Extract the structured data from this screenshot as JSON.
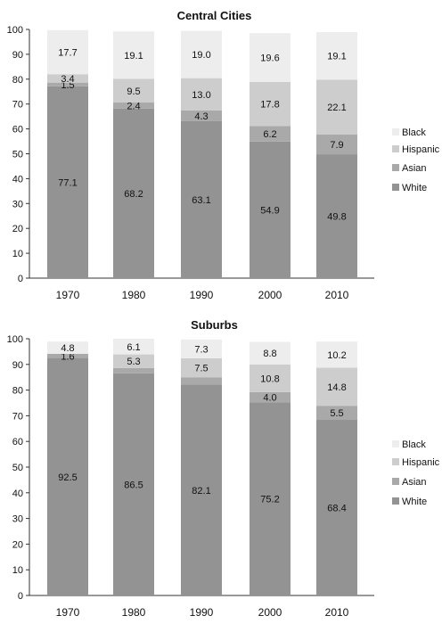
{
  "colors": {
    "White": "#939393",
    "Asian": "#a9a9a9",
    "Hispanic": "#cdcdcd",
    "Black": "#ededed",
    "axis": "#333333"
  },
  "chart_data": [
    {
      "type": "bar",
      "stacked": true,
      "title": "Central Cities",
      "categories": [
        "1970",
        "1980",
        "1990",
        "2000",
        "2010"
      ],
      "ylim": [
        0,
        100
      ],
      "yticks": [
        0,
        10,
        20,
        30,
        40,
        50,
        60,
        70,
        80,
        90,
        100
      ],
      "legend_position": "right",
      "series": [
        {
          "name": "White",
          "values": [
            77.1,
            68.2,
            63.1,
            54.9,
            49.8
          ],
          "labels": [
            "77.1",
            "68.2",
            "63.1",
            "54.9",
            "49.8"
          ]
        },
        {
          "name": "Asian",
          "values": [
            1.5,
            2.4,
            4.3,
            6.2,
            7.9
          ],
          "labels": [
            "1.5",
            "2.4",
            "4.3",
            "6.2",
            "7.9"
          ]
        },
        {
          "name": "Hispanic",
          "values": [
            3.4,
            9.5,
            13.0,
            17.8,
            22.1
          ],
          "labels": [
            "3.4",
            "9.5",
            "13.0",
            "17.8",
            "22.1"
          ]
        },
        {
          "name": "Black",
          "values": [
            17.7,
            19.1,
            19.0,
            19.6,
            19.1
          ],
          "labels": [
            "17.7",
            "19.1",
            "19.0",
            "19.6",
            "19.1"
          ]
        }
      ],
      "legend": [
        "Black",
        "Hispanic",
        "Asian",
        "White"
      ]
    },
    {
      "type": "bar",
      "stacked": true,
      "title": "Suburbs",
      "categories": [
        "1970",
        "1980",
        "1990",
        "2000",
        "2010"
      ],
      "ylim": [
        0,
        100
      ],
      "yticks": [
        0,
        10,
        20,
        30,
        40,
        50,
        60,
        70,
        80,
        90,
        100
      ],
      "legend_position": "right",
      "series": [
        {
          "name": "White",
          "values": [
            92.5,
            86.5,
            82.1,
            75.2,
            68.4
          ],
          "labels": [
            "92.5",
            "86.5",
            "82.1",
            "75.2",
            "68.4"
          ]
        },
        {
          "name": "Asian",
          "values": [
            1.6,
            2.1,
            2.8,
            4.0,
            5.5
          ],
          "labels": [
            "1.6",
            "",
            "",
            "4.0",
            "5.5"
          ]
        },
        {
          "name": "Hispanic",
          "values": [
            0,
            5.3,
            7.5,
            10.8,
            14.8
          ],
          "labels": [
            "",
            "5.3",
            "7.5",
            "10.8",
            "14.8"
          ]
        },
        {
          "name": "Black",
          "values": [
            4.8,
            6.1,
            7.3,
            8.8,
            10.2
          ],
          "labels": [
            "4.8",
            "6.1",
            "7.3",
            "8.8",
            "10.2"
          ]
        }
      ],
      "legend": [
        "Black",
        "Hispanic",
        "Asian",
        "White"
      ]
    }
  ]
}
